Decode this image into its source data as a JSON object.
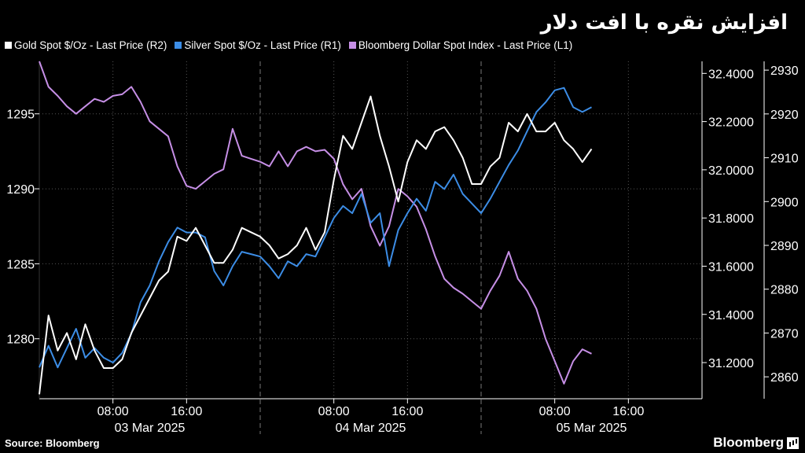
{
  "title": "افزایش نقره با افت دلار",
  "legend": [
    {
      "label": "Gold Spot $/Oz - Last Price (R2)",
      "color": "#ffffff"
    },
    {
      "label": "Silver Spot $/Oz - Last Price (R1)",
      "color": "#3c8de6"
    },
    {
      "label": "Bloomberg Dollar Spot Index - Last Price (L1)",
      "color": "#c68fe6"
    }
  ],
  "source": "Source: Bloomberg",
  "brand": "Bloomberg",
  "colors": {
    "gold": "#ffffff",
    "silver": "#3c8de6",
    "dollar": "#c68fe6",
    "grid": "#555555"
  },
  "chart_data": {
    "type": "line",
    "x_range": [
      "2025-03-03T00:00",
      "2025-03-06T00:00"
    ],
    "x_tick_labels": [
      "08:00",
      "16:00",
      "08:00",
      "16:00",
      "08:00",
      "16:00"
    ],
    "x_tick_times": [
      "2025-03-03T08:00",
      "2025-03-03T16:00",
      "2025-03-04T08:00",
      "2025-03-04T16:00",
      "2025-03-05T08:00",
      "2025-03-05T16:00"
    ],
    "day_labels": [
      "03 Mar 2025",
      "04 Mar 2025",
      "05 Mar 2025"
    ],
    "axes": {
      "L1": {
        "ticks": [
          1280,
          1285,
          1290,
          1295
        ],
        "range": [
          1276,
          1298.5
        ]
      },
      "R1": {
        "ticks": [
          "31.2000",
          "31.4000",
          "31.6000",
          "31.8000",
          "32.0000",
          "32.2000",
          "32.4000"
        ],
        "range": [
          31.05,
          32.45
        ]
      },
      "R2": {
        "ticks": [
          2860,
          2870,
          2880,
          2890,
          2900,
          2910,
          2920,
          2930
        ],
        "range": [
          2855,
          2932
        ]
      }
    },
    "grid": true,
    "legend_position": "top-left",
    "series": [
      {
        "name": "Bloomberg Dollar Spot Index - Last Price (L1)",
        "axis": "L1",
        "points": [
          [
            "2025-03-03T00:00",
            1298.5
          ],
          [
            "2025-03-03T01:00",
            1296.8
          ],
          [
            "2025-03-03T02:00",
            1296.2
          ],
          [
            "2025-03-03T03:00",
            1295.5
          ],
          [
            "2025-03-03T04:00",
            1295.0
          ],
          [
            "2025-03-03T05:00",
            1295.5
          ],
          [
            "2025-03-03T06:00",
            1296.0
          ],
          [
            "2025-03-03T07:00",
            1295.8
          ],
          [
            "2025-03-03T08:00",
            1296.2
          ],
          [
            "2025-03-03T09:00",
            1296.3
          ],
          [
            "2025-03-03T10:00",
            1296.8
          ],
          [
            "2025-03-03T11:00",
            1295.8
          ],
          [
            "2025-03-03T12:00",
            1294.5
          ],
          [
            "2025-03-03T13:00",
            1294.0
          ],
          [
            "2025-03-03T14:00",
            1293.5
          ],
          [
            "2025-03-03T15:00",
            1291.5
          ],
          [
            "2025-03-03T16:00",
            1290.2
          ],
          [
            "2025-03-03T17:00",
            1290.0
          ],
          [
            "2025-03-03T18:00",
            1290.5
          ],
          [
            "2025-03-03T19:00",
            1291.0
          ],
          [
            "2025-03-03T20:00",
            1291.3
          ],
          [
            "2025-03-03T21:00",
            1294.0
          ],
          [
            "2025-03-03T22:00",
            1292.2
          ],
          [
            "2025-03-03T23:00",
            1292.0
          ],
          [
            "2025-03-04T00:00",
            1291.8
          ],
          [
            "2025-03-04T01:00",
            1291.5
          ],
          [
            "2025-03-04T02:00",
            1292.5
          ],
          [
            "2025-03-04T03:00",
            1291.5
          ],
          [
            "2025-03-04T04:00",
            1292.5
          ],
          [
            "2025-03-04T05:00",
            1292.8
          ],
          [
            "2025-03-04T06:00",
            1292.5
          ],
          [
            "2025-03-04T07:00",
            1292.6
          ],
          [
            "2025-03-04T08:00",
            1292.0
          ],
          [
            "2025-03-04T09:00",
            1290.3
          ],
          [
            "2025-03-04T10:00",
            1289.3
          ],
          [
            "2025-03-04T11:00",
            1290.0
          ],
          [
            "2025-03-04T12:00",
            1287.5
          ],
          [
            "2025-03-04T13:00",
            1286.2
          ],
          [
            "2025-03-04T14:00",
            1287.5
          ],
          [
            "2025-03-04T15:00",
            1290.0
          ],
          [
            "2025-03-04T16:00",
            1289.5
          ],
          [
            "2025-03-04T17:00",
            1288.8
          ],
          [
            "2025-03-04T18:00",
            1287.3
          ],
          [
            "2025-03-04T19:00",
            1285.5
          ],
          [
            "2025-03-04T20:00",
            1284.0
          ],
          [
            "2025-03-04T21:00",
            1283.4
          ],
          [
            "2025-03-04T22:00",
            1283.0
          ],
          [
            "2025-03-04T23:00",
            1282.5
          ],
          [
            "2025-03-05T00:00",
            1282.0
          ],
          [
            "2025-03-05T01:00",
            1283.2
          ],
          [
            "2025-03-05T02:00",
            1284.2
          ],
          [
            "2025-03-05T03:00",
            1285.8
          ],
          [
            "2025-03-05T04:00",
            1284.0
          ],
          [
            "2025-03-05T05:00",
            1283.2
          ],
          [
            "2025-03-05T06:00",
            1282.0
          ],
          [
            "2025-03-05T07:00",
            1280.0
          ],
          [
            "2025-03-05T08:00",
            1278.5
          ],
          [
            "2025-03-05T09:00",
            1277.0
          ],
          [
            "2025-03-05T10:00",
            1278.5
          ],
          [
            "2025-03-05T11:00",
            1279.3
          ],
          [
            "2025-03-05T12:00",
            1279.0
          ]
        ]
      },
      {
        "name": "Silver Spot $/Oz - Last Price (R1)",
        "axis": "R1",
        "points": [
          [
            "2025-03-03T00:00",
            31.18
          ],
          [
            "2025-03-03T01:00",
            31.27
          ],
          [
            "2025-03-03T02:00",
            31.18
          ],
          [
            "2025-03-03T03:00",
            31.26
          ],
          [
            "2025-03-03T04:00",
            31.34
          ],
          [
            "2025-03-03T05:00",
            31.22
          ],
          [
            "2025-03-03T06:00",
            31.26
          ],
          [
            "2025-03-03T07:00",
            31.22
          ],
          [
            "2025-03-03T08:00",
            31.2
          ],
          [
            "2025-03-03T09:00",
            31.24
          ],
          [
            "2025-03-03T10:00",
            31.32
          ],
          [
            "2025-03-03T11:00",
            31.45
          ],
          [
            "2025-03-03T12:00",
            31.52
          ],
          [
            "2025-03-03T13:00",
            31.62
          ],
          [
            "2025-03-03T14:00",
            31.7
          ],
          [
            "2025-03-03T15:00",
            31.76
          ],
          [
            "2025-03-03T16:00",
            31.74
          ],
          [
            "2025-03-03T17:00",
            31.74
          ],
          [
            "2025-03-03T18:00",
            31.72
          ],
          [
            "2025-03-03T19:00",
            31.58
          ],
          [
            "2025-03-03T20:00",
            31.52
          ],
          [
            "2025-03-03T21:00",
            31.6
          ],
          [
            "2025-03-03T22:00",
            31.66
          ],
          [
            "2025-03-03T23:00",
            31.65
          ],
          [
            "2025-03-04T00:00",
            31.64
          ],
          [
            "2025-03-04T01:00",
            31.6
          ],
          [
            "2025-03-04T02:00",
            31.55
          ],
          [
            "2025-03-04T03:00",
            31.62
          ],
          [
            "2025-03-04T04:00",
            31.6
          ],
          [
            "2025-03-04T05:00",
            31.65
          ],
          [
            "2025-03-04T06:00",
            31.64
          ],
          [
            "2025-03-04T07:00",
            31.72
          ],
          [
            "2025-03-04T08:00",
            31.8
          ],
          [
            "2025-03-04T09:00",
            31.85
          ],
          [
            "2025-03-04T10:00",
            31.82
          ],
          [
            "2025-03-04T11:00",
            31.9
          ],
          [
            "2025-03-04T12:00",
            31.78
          ],
          [
            "2025-03-04T13:00",
            31.82
          ],
          [
            "2025-03-04T14:00",
            31.6
          ],
          [
            "2025-03-04T15:00",
            31.75
          ],
          [
            "2025-03-04T16:00",
            31.82
          ],
          [
            "2025-03-04T17:00",
            31.88
          ],
          [
            "2025-03-04T18:00",
            31.83
          ],
          [
            "2025-03-04T19:00",
            31.95
          ],
          [
            "2025-03-04T20:00",
            31.92
          ],
          [
            "2025-03-04T21:00",
            31.98
          ],
          [
            "2025-03-04T22:00",
            31.9
          ],
          [
            "2025-03-04T23:00",
            31.86
          ],
          [
            "2025-03-05T00:00",
            31.82
          ],
          [
            "2025-03-05T01:00",
            31.88
          ],
          [
            "2025-03-05T02:00",
            31.95
          ],
          [
            "2025-03-05T03:00",
            32.02
          ],
          [
            "2025-03-05T04:00",
            32.08
          ],
          [
            "2025-03-05T05:00",
            32.16
          ],
          [
            "2025-03-05T06:00",
            32.24
          ],
          [
            "2025-03-05T07:00",
            32.28
          ],
          [
            "2025-03-05T08:00",
            32.33
          ],
          [
            "2025-03-05T09:00",
            32.34
          ],
          [
            "2025-03-05T10:00",
            32.26
          ],
          [
            "2025-03-05T11:00",
            32.24
          ],
          [
            "2025-03-05T12:00",
            32.26
          ]
        ]
      },
      {
        "name": "Gold Spot $/Oz - Last Price (R2)",
        "axis": "R2",
        "points": [
          [
            "2025-03-03T00:00",
            2856
          ],
          [
            "2025-03-03T01:00",
            2874
          ],
          [
            "2025-03-03T02:00",
            2866
          ],
          [
            "2025-03-03T03:00",
            2870
          ],
          [
            "2025-03-03T04:00",
            2864
          ],
          [
            "2025-03-03T05:00",
            2872
          ],
          [
            "2025-03-03T06:00",
            2866
          ],
          [
            "2025-03-03T07:00",
            2862
          ],
          [
            "2025-03-03T08:00",
            2862
          ],
          [
            "2025-03-03T09:00",
            2864
          ],
          [
            "2025-03-03T10:00",
            2870
          ],
          [
            "2025-03-03T11:00",
            2874
          ],
          [
            "2025-03-03T12:00",
            2878
          ],
          [
            "2025-03-03T13:00",
            2882
          ],
          [
            "2025-03-03T14:00",
            2884
          ],
          [
            "2025-03-03T15:00",
            2892
          ],
          [
            "2025-03-03T16:00",
            2891
          ],
          [
            "2025-03-03T17:00",
            2894
          ],
          [
            "2025-03-03T18:00",
            2890
          ],
          [
            "2025-03-03T19:00",
            2886
          ],
          [
            "2025-03-03T20:00",
            2886
          ],
          [
            "2025-03-03T21:00",
            2889
          ],
          [
            "2025-03-03T22:00",
            2894
          ],
          [
            "2025-03-03T23:00",
            2893
          ],
          [
            "2025-03-04T00:00",
            2892
          ],
          [
            "2025-03-04T01:00",
            2890
          ],
          [
            "2025-03-04T02:00",
            2887
          ],
          [
            "2025-03-04T03:00",
            2888
          ],
          [
            "2025-03-04T04:00",
            2890
          ],
          [
            "2025-03-04T05:00",
            2894
          ],
          [
            "2025-03-04T06:00",
            2889
          ],
          [
            "2025-03-04T07:00",
            2893
          ],
          [
            "2025-03-04T08:00",
            2905
          ],
          [
            "2025-03-04T09:00",
            2915
          ],
          [
            "2025-03-04T10:00",
            2912
          ],
          [
            "2025-03-04T11:00",
            2918
          ],
          [
            "2025-03-04T12:00",
            2924
          ],
          [
            "2025-03-04T13:00",
            2915
          ],
          [
            "2025-03-04T14:00",
            2908
          ],
          [
            "2025-03-04T15:00",
            2900
          ],
          [
            "2025-03-04T16:00",
            2909
          ],
          [
            "2025-03-04T17:00",
            2914
          ],
          [
            "2025-03-04T18:00",
            2912
          ],
          [
            "2025-03-04T19:00",
            2916
          ],
          [
            "2025-03-04T20:00",
            2917
          ],
          [
            "2025-03-04T21:00",
            2914
          ],
          [
            "2025-03-04T22:00",
            2910
          ],
          [
            "2025-03-04T23:00",
            2904
          ],
          [
            "2025-03-05T00:00",
            2904
          ],
          [
            "2025-03-05T01:00",
            2908
          ],
          [
            "2025-03-05T02:00",
            2910
          ],
          [
            "2025-03-05T03:00",
            2918
          ],
          [
            "2025-03-05T04:00",
            2916
          ],
          [
            "2025-03-05T05:00",
            2920
          ],
          [
            "2025-03-05T06:00",
            2916
          ],
          [
            "2025-03-05T07:00",
            2916
          ],
          [
            "2025-03-05T08:00",
            2918
          ],
          [
            "2025-03-05T09:00",
            2914
          ],
          [
            "2025-03-05T10:00",
            2912
          ],
          [
            "2025-03-05T11:00",
            2909
          ],
          [
            "2025-03-05T12:00",
            2912
          ]
        ]
      }
    ]
  }
}
